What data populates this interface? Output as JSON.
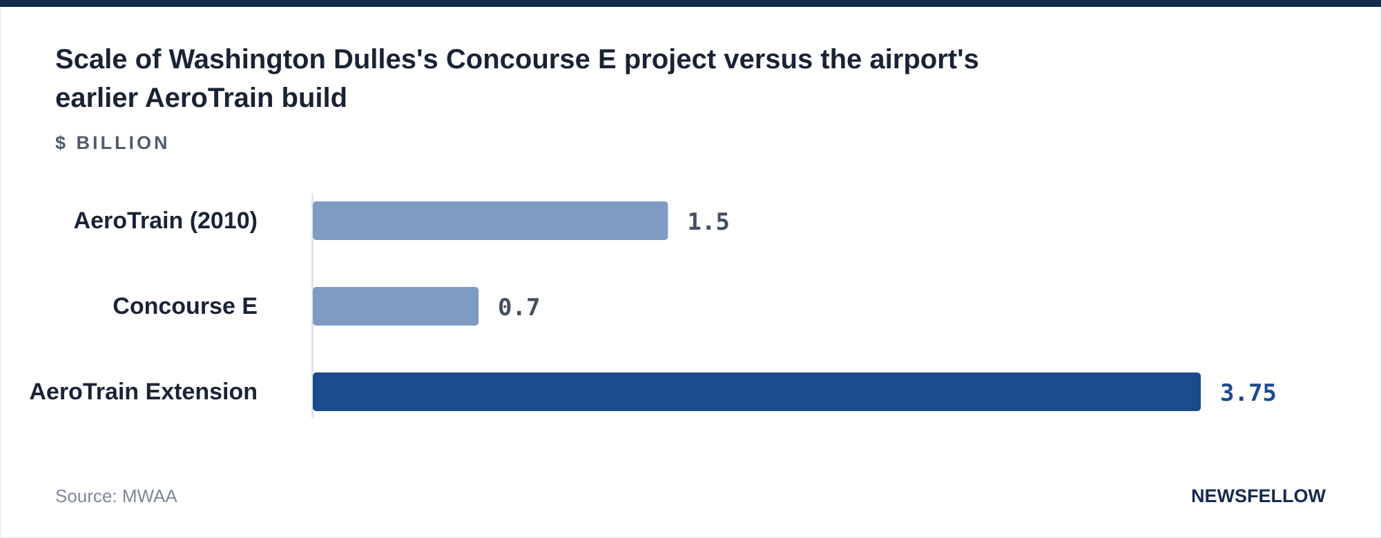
{
  "chart_data": {
    "type": "bar",
    "orientation": "horizontal",
    "title": "Scale of Washington Dulles's Concourse E project versus the airport's earlier AeroTrain build",
    "unit_label": "$ BILLION",
    "categories": [
      "AeroTrain (2010)",
      "Concourse E",
      "AeroTrain Extension"
    ],
    "values": [
      1.5,
      0.7,
      3.75
    ],
    "value_labels": [
      "1.5",
      "0.7",
      "3.75"
    ],
    "bar_colors": [
      "#7e9bc4",
      "#7e9bc4",
      "#1c4b8c"
    ],
    "value_label_colors": [
      "#444f5f",
      "#444f5f",
      "#1c4b8c"
    ],
    "axis_color": "#e1e5ea",
    "xlim": [
      0,
      3.75
    ],
    "grid": false,
    "legend": "none"
  },
  "footer": {
    "source": "Source: MWAA",
    "brand": "NEWSFELLOW"
  }
}
